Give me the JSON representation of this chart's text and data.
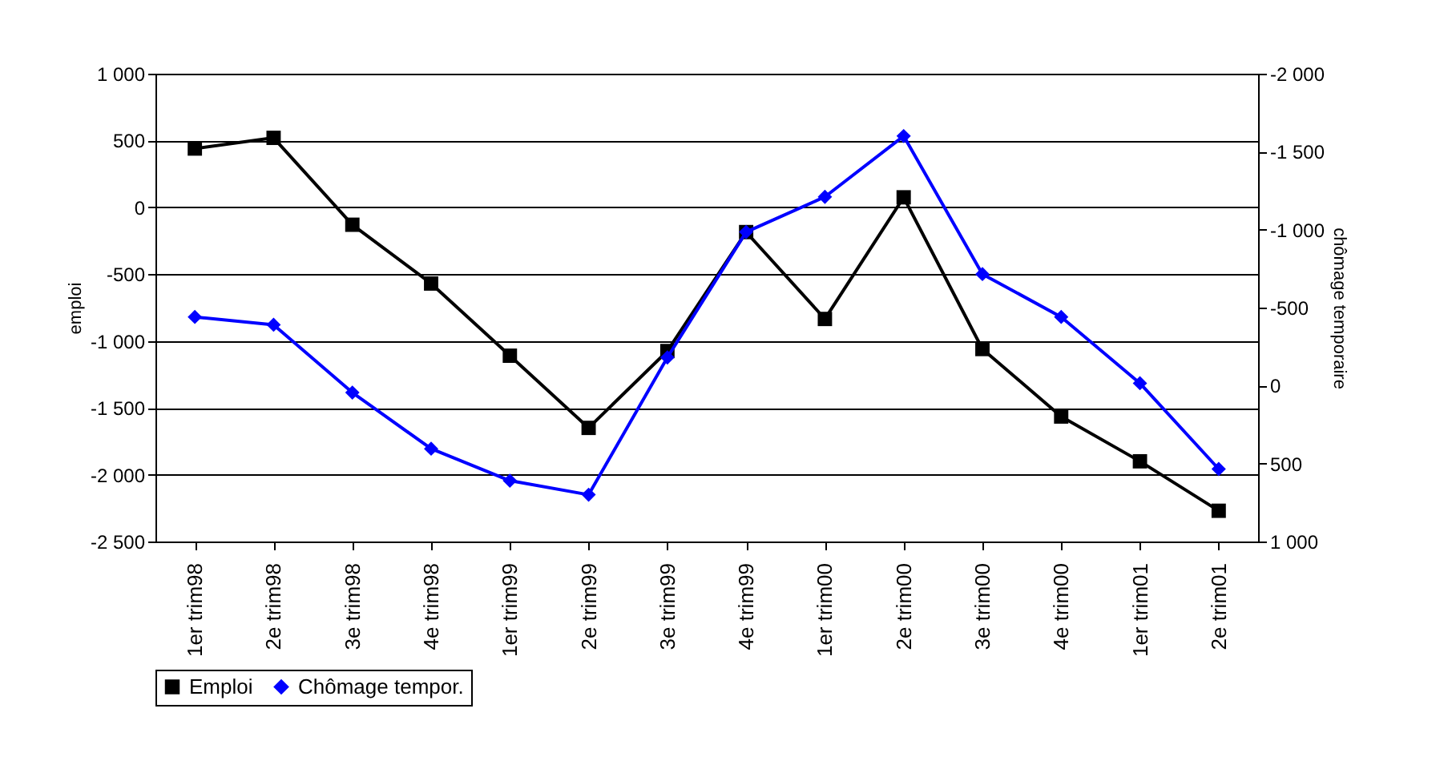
{
  "chart_data": {
    "type": "line",
    "xlabel": null,
    "ylabel": "emploi",
    "y2label": "chômage temporaire",
    "categories": [
      "1er trim98",
      "2e trim98",
      "3e trim98",
      "4e trim98",
      "1er trim99",
      "2e trim99",
      "3e trim99",
      "4e trim99",
      "1er trim00",
      "2e trim00",
      "3e trim00",
      "4e trim00",
      "1er trim01",
      "2e trim01"
    ],
    "series": [
      {
        "name": "Emploi",
        "color": "#000000",
        "marker": "square",
        "values": [
          440,
          520,
          -130,
          -570,
          -1110,
          -1650,
          -1075,
          -185,
          -835,
          75,
          -1060,
          -1565,
          -1900,
          -2270
        ]
      },
      {
        "name": "Chômage tempor.",
        "color": "#0000ff",
        "marker": "diamond",
        "axis": "y2",
        "values": [
          -440,
          -390,
          45,
          405,
          610,
          700,
          -180,
          -985,
          -1210,
          -1600,
          -715,
          -440,
          -15,
          535
        ]
      }
    ],
    "ylim": [
      -2500,
      1000
    ],
    "yticks": [
      {
        "value": -2500,
        "label": "-2 500"
      },
      {
        "value": -2000,
        "label": "-2 000"
      },
      {
        "value": -1500,
        "label": "-1 500"
      },
      {
        "value": -1000,
        "label": "-1 000"
      },
      -500,
      0,
      500,
      {
        "value": 1000,
        "label": "1 000"
      }
    ],
    "y2lim": [
      1000,
      -2000
    ],
    "y2ticks": [
      {
        "value": 1000,
        "label": "1 000"
      },
      500,
      0,
      -500,
      {
        "value": -1000,
        "label": "-1 000"
      },
      {
        "value": -1500,
        "label": "-1 500"
      },
      {
        "value": -2000,
        "label": "-2 000"
      }
    ],
    "grid": "y",
    "legend": "bottom",
    "line_style": "solid"
  }
}
